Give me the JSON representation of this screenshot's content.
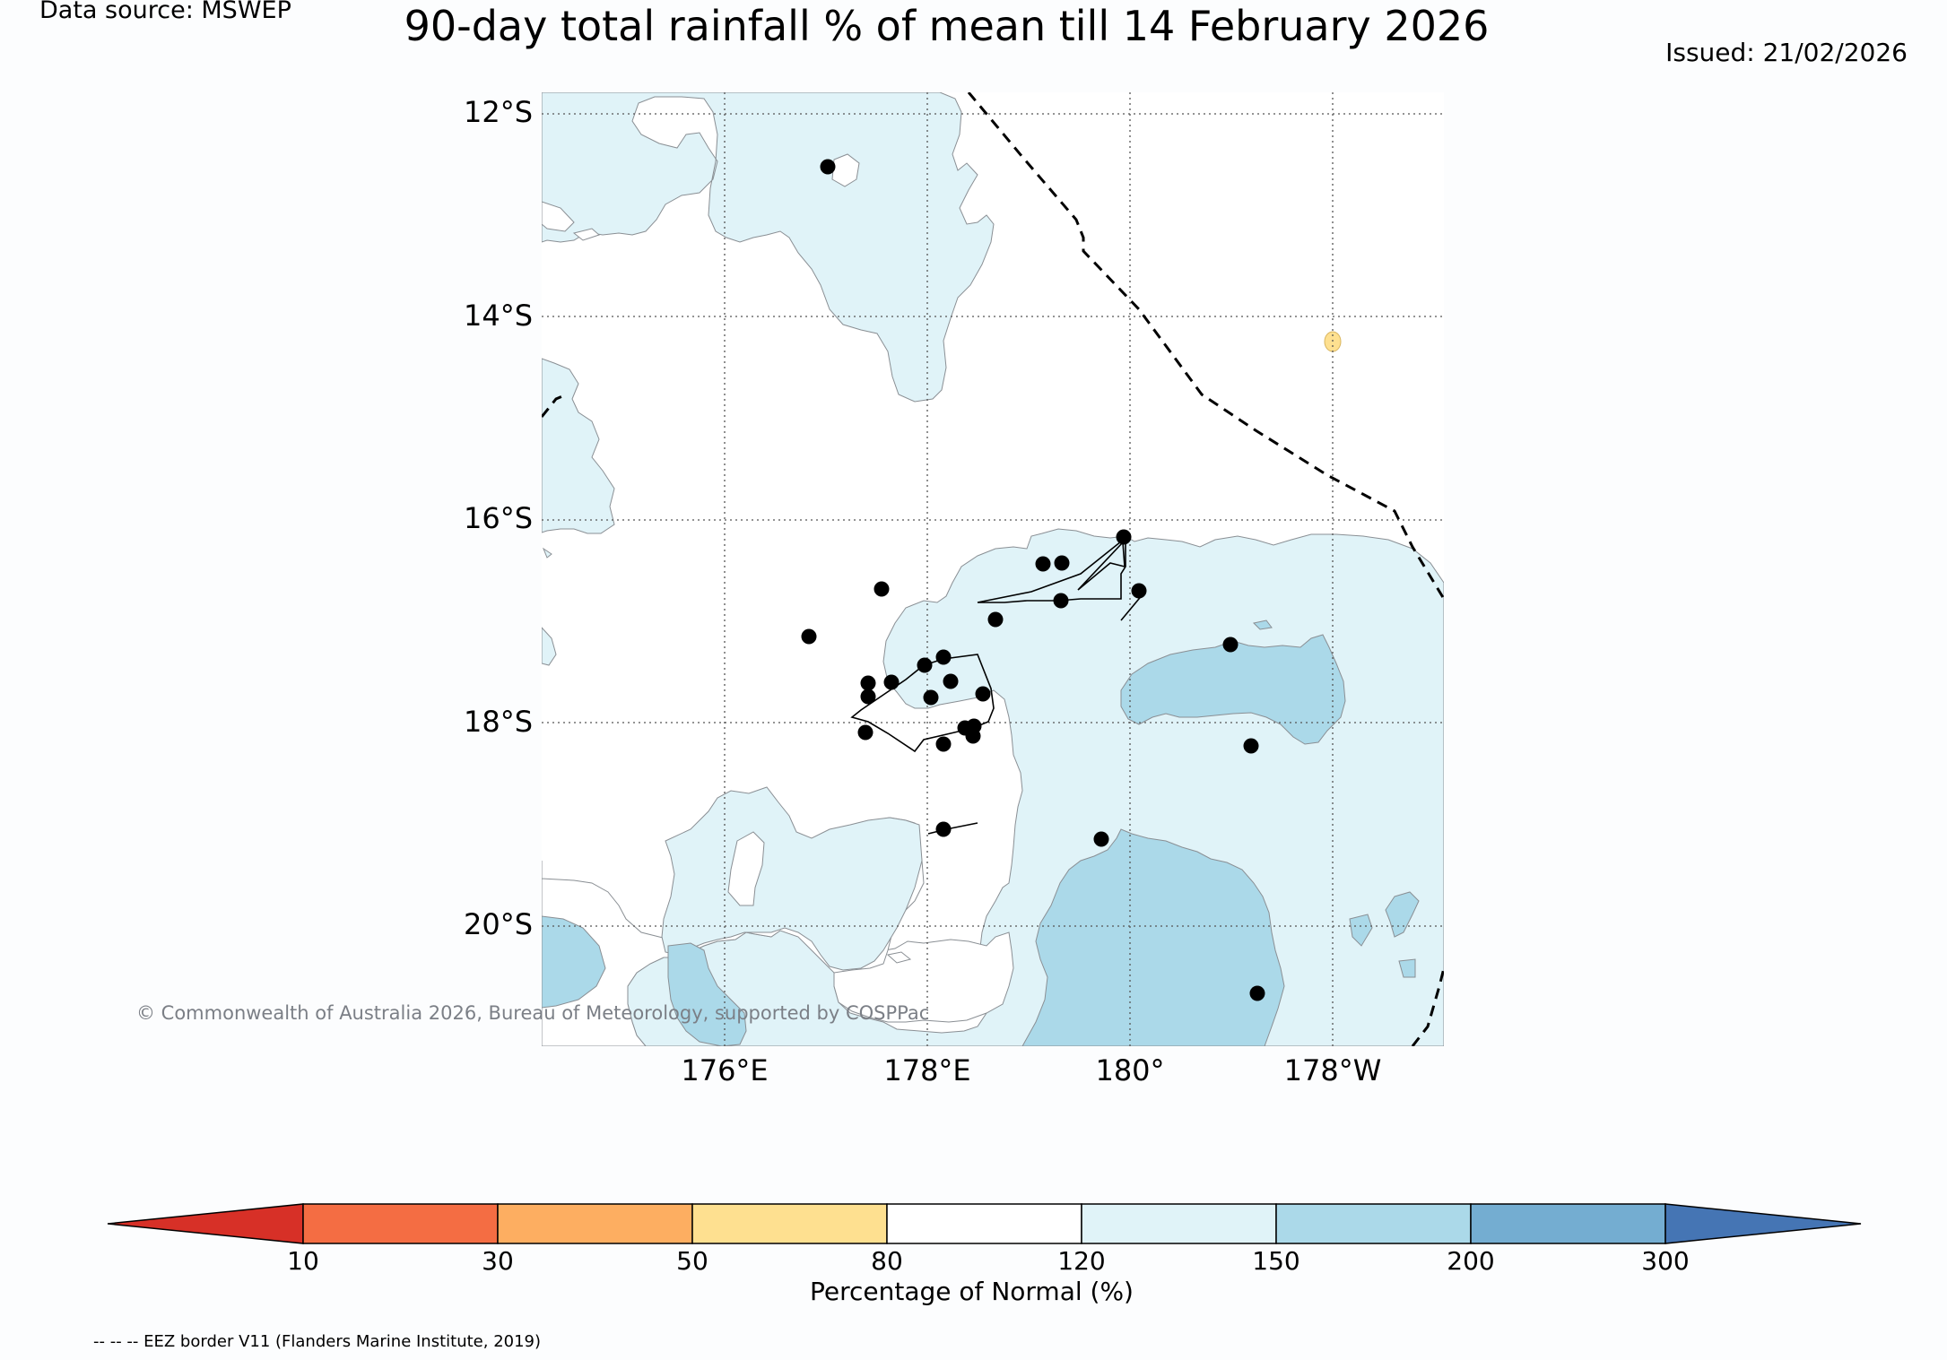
{
  "header": {
    "data_source": "Data source: MSWEP",
    "title": "90-day total rainfall % of mean till 14 February 2026",
    "issued": "Issued: 21/02/2026"
  },
  "map": {
    "lat_labels": [
      "12°S",
      "14°S",
      "16°S",
      "18°S",
      "20°S"
    ],
    "lon_labels": [
      "176°E",
      "178°E",
      "180°",
      "178°W"
    ],
    "copyright": "© Commonwealth of Australia 2026, Bureau of Meteorology, supported by COSPPac"
  },
  "colorbar": {
    "label": "Percentage of Normal (%)",
    "ticks": [
      "10",
      "30",
      "50",
      "80",
      "120",
      "150",
      "200",
      "300"
    ],
    "colors": {
      "below_10": "#d73027",
      "10_30": "#f46d43",
      "30_50": "#fdae61",
      "50_80": "#fee090",
      "80_120": "#ffffff",
      "120_150": "#e0f3f8",
      "150_200": "#abd9e9",
      "200_300": "#74add1",
      "above_300": "#4575b4"
    }
  },
  "footer": {
    "eez_note": "-- -- -- EEZ border V11 (Flanders Marine Institute, 2019)"
  }
}
